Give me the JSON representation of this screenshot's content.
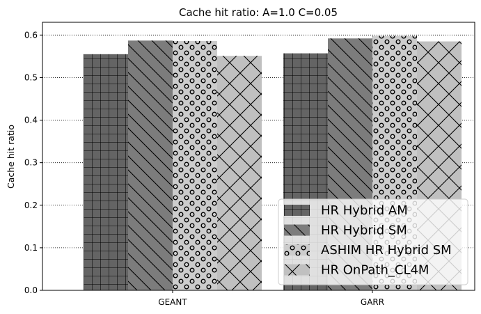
{
  "chart_data": {
    "type": "bar",
    "title": "Cache hit ratio: A=1.0 C=0.05",
    "xlabel": "",
    "ylabel": "Cache hit ratio",
    "ylim": [
      0,
      0.63
    ],
    "yticks": [
      0.0,
      0.1,
      0.2,
      0.3,
      0.4,
      0.5,
      0.6
    ],
    "ytick_labels": [
      "0.0",
      "0.1",
      "0.2",
      "0.3",
      "0.4",
      "0.5",
      "0.6"
    ],
    "categories": [
      "GEANT",
      "GARR"
    ],
    "grid": "y-dotted",
    "legend_position": "lower-right",
    "series": [
      {
        "name": "HR Hybrid AM",
        "values": [
          0.555,
          0.557
        ],
        "color": "#646464",
        "hatch": "grid"
      },
      {
        "name": "HR Hybrid SM",
        "values": [
          0.587,
          0.592
        ],
        "color": "#7c7c7c",
        "hatch": "backslash"
      },
      {
        "name": "ASHIM HR Hybrid SM",
        "values": [
          0.586,
          0.598
        ],
        "color": "#cccccc",
        "hatch": "circles"
      },
      {
        "name": "HR OnPath_CL4M",
        "values": [
          0.551,
          0.585
        ],
        "color": "#c0c0c0",
        "hatch": "cross"
      }
    ]
  }
}
